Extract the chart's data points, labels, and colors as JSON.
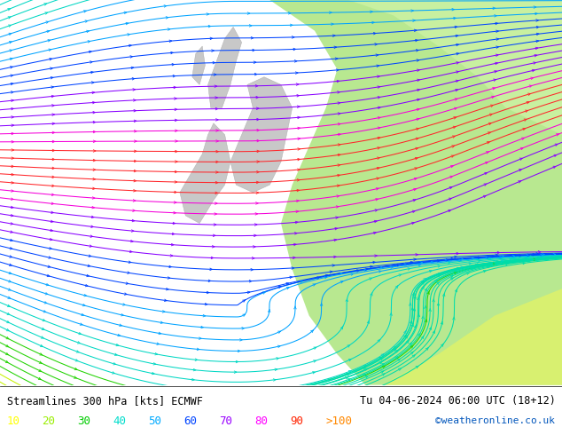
{
  "title_left": "Streamlines 300 hPa [kts] ECMWF",
  "title_right": "Tu 04-06-2024 06:00 UTC (18+12)",
  "credit": "©weatheronline.co.uk",
  "legend_labels": [
    "10",
    "20",
    "30",
    "40",
    "50",
    "60",
    "70",
    "80",
    "90",
    ">100"
  ],
  "legend_colors": [
    "#ffff00",
    "#99ee00",
    "#00cc00",
    "#00ddcc",
    "#00aaff",
    "#0044ff",
    "#9900ff",
    "#ff00ff",
    "#ff2200",
    "#ff8800"
  ],
  "bg_color": "#d8d8d8",
  "figsize": [
    6.34,
    4.9
  ],
  "dpi": 100
}
